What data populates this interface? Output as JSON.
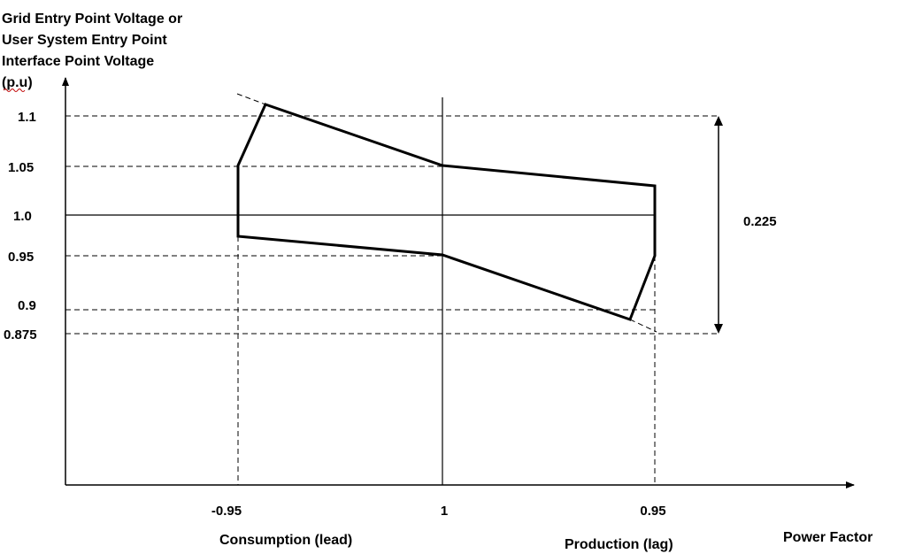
{
  "y_axis_title": [
    "Grid Entry Point Voltage or",
    "User System Entry Point",
    "Interface Point Voltage",
    "(p.u)"
  ],
  "y_ticks": [
    "1.1",
    "1.05",
    "1.0",
    "0.95",
    "0.9",
    "0.875"
  ],
  "x_ticks": [
    "-0.95",
    "1",
    "0.95"
  ],
  "x_axis_title": "Power Factor",
  "left_region_label": "Consumption (lead)",
  "right_region_label": "Production (lag)",
  "range_label": "0.225"
}
